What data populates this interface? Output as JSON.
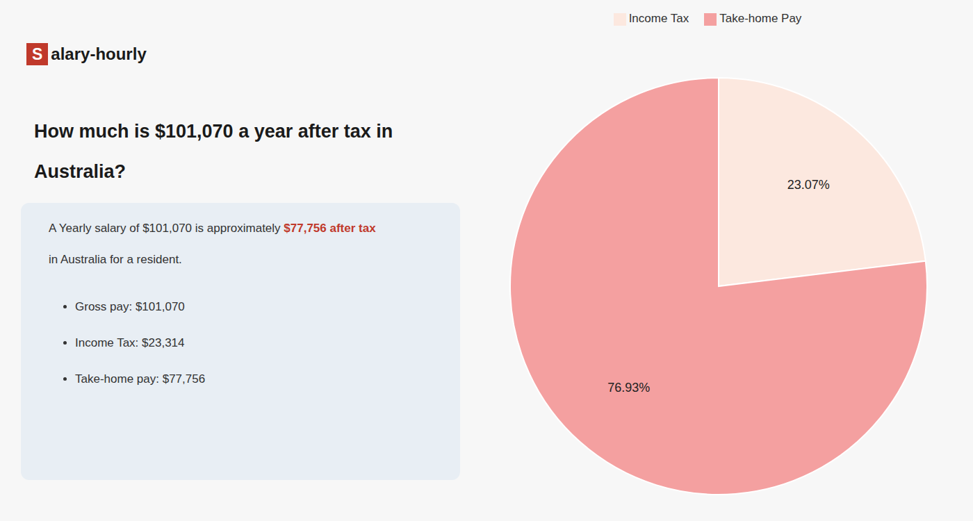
{
  "chart_data": {
    "type": "pie",
    "title": "How much is $101,070 a year after tax in Australia?",
    "annotations": [
      "S",
      "alary-hourly",
      "A Yearly salary of $101,070 is approximately ",
      "$77,756 after tax",
      "in Australia for a resident.",
      "Gross pay: $101,070",
      "Income Tax: $23,314",
      "Take-home pay: $77,756"
    ],
    "categories": [
      "Income Tax",
      "Take-home Pay"
    ],
    "values": [
      23.07,
      76.93
    ],
    "value_labels": [
      "23.07%",
      "76.93%"
    ],
    "colors": [
      "#fce8df",
      "#f4a0a0"
    ],
    "legend": "top",
    "data_labels": true
  }
}
